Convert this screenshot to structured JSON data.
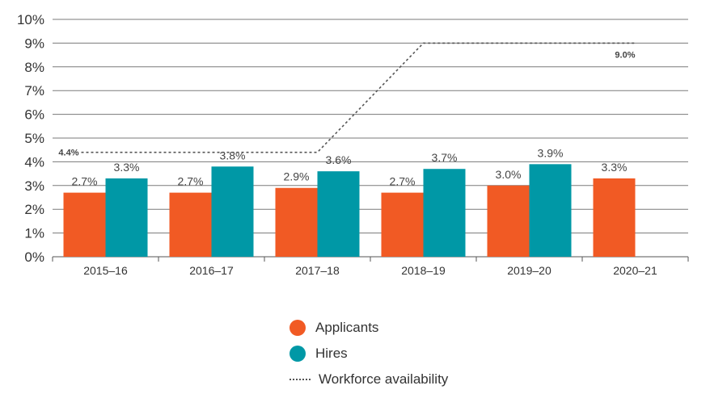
{
  "chart_data": {
    "type": "bar",
    "categories": [
      "2015–16",
      "2016–17",
      "2017–18",
      "2018–19",
      "2019–20",
      "2020–21"
    ],
    "series": [
      {
        "name": "Applicants",
        "values": [
          2.7,
          2.7,
          2.9,
          2.7,
          3.0,
          3.3
        ],
        "labels": [
          "2.7%",
          "2.7%",
          "2.9%",
          "2.7%",
          "3.0%",
          "3.3%"
        ],
        "color": "#F15A24"
      },
      {
        "name": "Hires",
        "values": [
          3.3,
          3.8,
          3.6,
          3.7,
          3.9,
          null
        ],
        "labels": [
          "3.3%",
          "3.8%",
          "3.6%",
          "3.7%",
          "3.9%",
          ""
        ],
        "color": "#0098A6"
      }
    ],
    "line_series": {
      "name": "Workforce availability",
      "values": [
        4.4,
        4.4,
        4.4,
        9.0,
        9.0,
        9.0
      ],
      "labels": [
        "4.4%",
        "",
        "",
        "",
        "",
        "9.0%"
      ],
      "style": "dotted",
      "color": "#555555"
    },
    "yticks": [
      "0%",
      "1%",
      "2%",
      "3%",
      "4%",
      "5%",
      "6%",
      "7%",
      "8%",
      "9%",
      "10%"
    ],
    "ylim": [
      0,
      10
    ],
    "grid": true,
    "legend_position": "bottom-center"
  }
}
